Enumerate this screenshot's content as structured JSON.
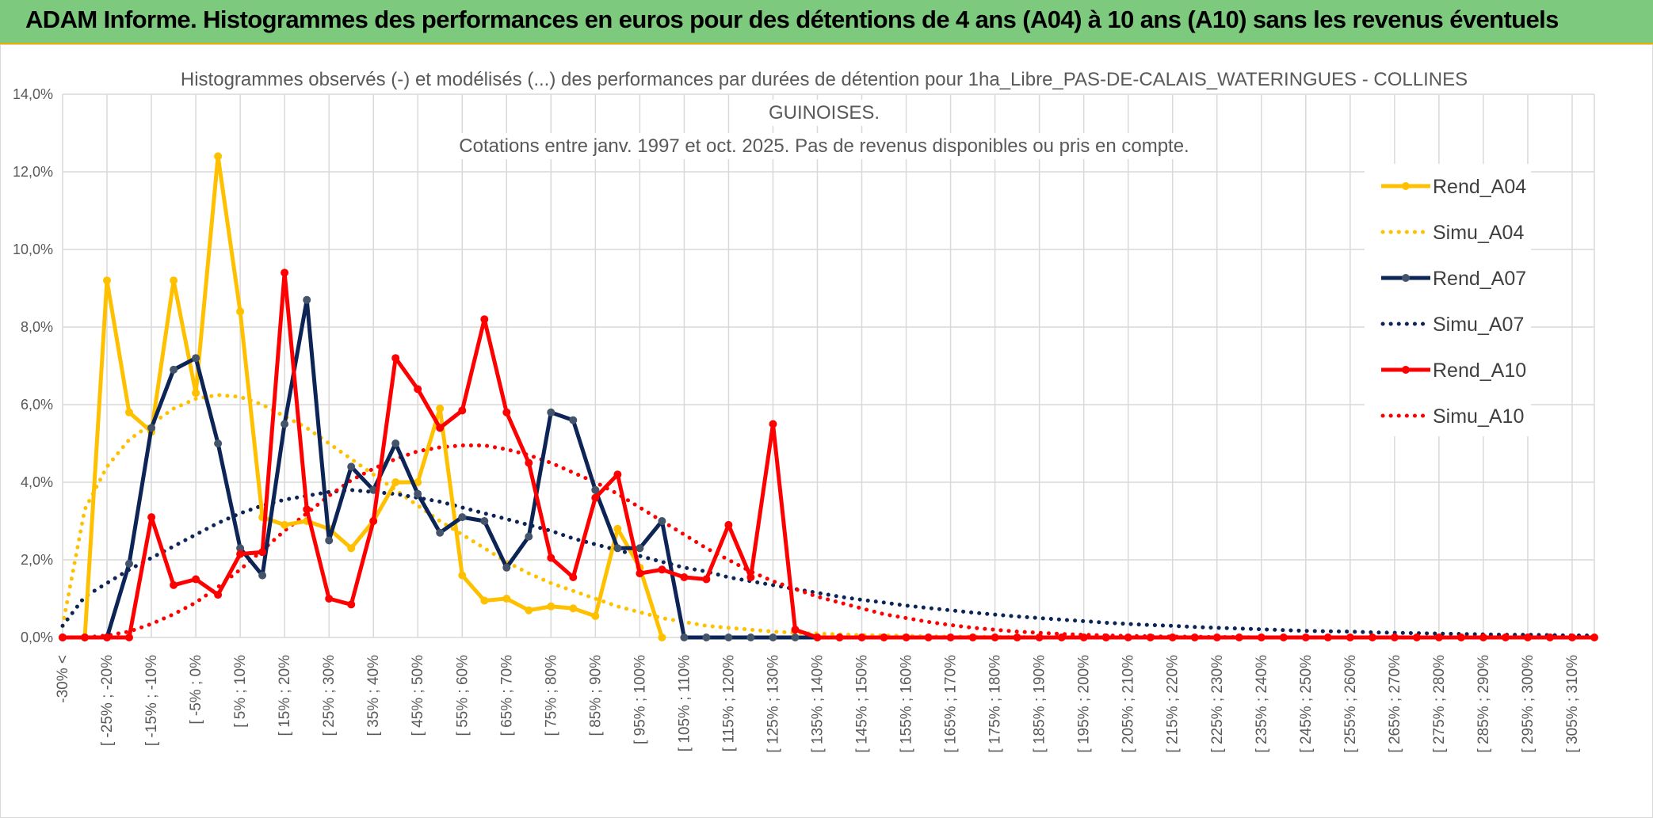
{
  "banner": {
    "title": "ADAM Informe. Histogrammes des performances en euros pour des détentions de 4 ans (A04) à 10 ans (A10) sans les revenus éventuels"
  },
  "chart_data": {
    "type": "line",
    "title_lines": [
      "Histogrammes observés (-) et modélisés (...) des performances par durées de détention pour 1ha_Libre_PAS-DE-CALAIS_WATERINGUES - COLLINES",
      "GUINOISES.",
      "Cotations entre janv. 1997 et oct. 2025. Pas de revenus disponibles ou pris en compte."
    ],
    "ylim": [
      0,
      14
    ],
    "yticks": [
      0,
      2,
      4,
      6,
      8,
      10,
      12,
      14
    ],
    "ytick_labels": [
      "0,0%",
      "2,0%",
      "4,0%",
      "6,0%",
      "8,0%",
      "10,0%",
      "12,0%",
      "14,0%"
    ],
    "x_count": 70,
    "x_tick_labels": [
      "-30% <",
      "[ -25% ; -20%",
      "[ -15% ; -10%",
      "[ -5% ; 0%",
      "[ 5% ; 10%",
      "[ 15% ; 20%",
      "[ 25% ; 30%",
      "[ 35% ; 40%",
      "[ 45% ; 50%",
      "[ 55% ; 60%",
      "[ 65% ; 70%",
      "[ 75% ; 80%",
      "[ 85% ; 90%",
      "[ 95% ; 100%",
      "[ 105% ; 110%",
      "[ 115% ; 120%",
      "[ 125% ; 130%",
      "[ 135% ; 140%",
      "[ 145% ; 150%",
      "[ 155% ; 160%",
      "[ 165% ; 170%",
      "[ 175% ; 180%",
      "[ 185% ; 190%",
      "[ 195% ; 200%",
      "[ 205% ; 210%",
      "[ 215% ; 220%",
      "[ 225% ; 230%",
      "[ 235% ; 240%",
      "[ 245% ; 250%",
      "[ 255% ; 260%",
      "[ 265% ; 270%",
      "[ 275% ; 280%",
      "[ 285% ; 290%",
      "[ 295% ; 300%",
      "[ 305% ; 310%"
    ],
    "series": [
      {
        "name": "Rend_A04",
        "style": "solid",
        "color": "#ffc000",
        "values": [
          0,
          0,
          9.2,
          5.8,
          5.3,
          9.2,
          6.3,
          12.4,
          8.4,
          3.1,
          2.9,
          3.0,
          2.8,
          2.3,
          3.0,
          4.0,
          4.0,
          5.9,
          1.6,
          0.95,
          1.0,
          0.7,
          0.8,
          0.75,
          0.55,
          2.8,
          1.8,
          0
        ]
      },
      {
        "name": "Simu_A04",
        "style": "dotted",
        "color": "#ffc000",
        "values": [
          0.3,
          3.3,
          4.4,
          5.1,
          5.5,
          5.9,
          6.15,
          6.25,
          6.2,
          6.0,
          5.7,
          5.4,
          5.0,
          4.6,
          4.2,
          3.8,
          3.4,
          3.0,
          2.65,
          2.3,
          1.95,
          1.65,
          1.4,
          1.2,
          1.0,
          0.8,
          0.65,
          0.5,
          0.4,
          0.3,
          0.25,
          0.2,
          0.15,
          0.12,
          0.1,
          0.08,
          0.06,
          0.05,
          0.04,
          0.03,
          0.02,
          0.02,
          0.01,
          0.01,
          0,
          0,
          0,
          0,
          0,
          0,
          0,
          0,
          0,
          0,
          0,
          0,
          0,
          0,
          0,
          0,
          0,
          0,
          0,
          0,
          0,
          0,
          0,
          0,
          0,
          0
        ]
      },
      {
        "name": "Rend_A07",
        "style": "solid",
        "color": "#0d2457",
        "values": [
          0,
          0,
          0,
          1.9,
          5.4,
          6.9,
          7.2,
          5.0,
          2.3,
          1.6,
          5.5,
          8.7,
          2.5,
          4.4,
          3.8,
          5.0,
          3.7,
          2.7,
          3.1,
          3.0,
          1.8,
          2.6,
          5.8,
          5.6,
          3.8,
          2.3,
          2.3,
          3.0,
          0,
          0,
          0,
          0,
          0,
          0,
          0,
          0
        ]
      },
      {
        "name": "Simu_A07",
        "style": "dotted",
        "color": "#0d2457",
        "values": [
          0.3,
          1.05,
          1.4,
          1.75,
          2.05,
          2.35,
          2.65,
          2.95,
          3.2,
          3.4,
          3.55,
          3.65,
          3.75,
          3.8,
          3.75,
          3.7,
          3.6,
          3.5,
          3.35,
          3.2,
          3.05,
          2.9,
          2.75,
          2.55,
          2.4,
          2.25,
          2.1,
          1.95,
          1.8,
          1.7,
          1.55,
          1.45,
          1.35,
          1.25,
          1.15,
          1.05,
          0.97,
          0.9,
          0.82,
          0.76,
          0.7,
          0.64,
          0.59,
          0.54,
          0.5,
          0.46,
          0.42,
          0.38,
          0.35,
          0.32,
          0.3,
          0.27,
          0.25,
          0.23,
          0.21,
          0.19,
          0.17,
          0.16,
          0.15,
          0.13,
          0.12,
          0.11,
          0.1,
          0.09,
          0.08,
          0.07,
          0.07,
          0.06,
          0.05,
          0.05
        ]
      },
      {
        "name": "Rend_A10",
        "style": "solid",
        "color": "#ff0000",
        "values": [
          0,
          0,
          0,
          0,
          3.1,
          1.35,
          1.5,
          1.1,
          2.15,
          2.2,
          9.4,
          3.3,
          1.0,
          0.85,
          3.0,
          7.2,
          6.4,
          5.4,
          5.85,
          8.2,
          5.8,
          4.5,
          2.05,
          1.55,
          3.6,
          4.2,
          1.65,
          1.75,
          1.55,
          1.5,
          2.9,
          1.55,
          5.5,
          0.2,
          0,
          0,
          0,
          0,
          0,
          0,
          0,
          0,
          0,
          0,
          0,
          0,
          0,
          0,
          0,
          0,
          0,
          0,
          0,
          0,
          0,
          0,
          0,
          0,
          0,
          0,
          0,
          0,
          0,
          0,
          0,
          0,
          0,
          0,
          0,
          0
        ]
      },
      {
        "name": "Simu_A10",
        "style": "dotted",
        "color": "#ff0000",
        "values": [
          0,
          0,
          0.05,
          0.15,
          0.35,
          0.6,
          0.9,
          1.3,
          1.75,
          2.25,
          2.75,
          3.2,
          3.65,
          4.05,
          4.35,
          4.6,
          4.8,
          4.9,
          4.95,
          4.95,
          4.85,
          4.7,
          4.5,
          4.25,
          4.0,
          3.7,
          3.35,
          3.0,
          2.65,
          2.3,
          2.0,
          1.7,
          1.45,
          1.25,
          1.05,
          0.9,
          0.75,
          0.6,
          0.5,
          0.4,
          0.32,
          0.25,
          0.2,
          0.15,
          0.12,
          0.09,
          0.07,
          0.05,
          0.04,
          0.03,
          0.02,
          0.02,
          0.01,
          0.01,
          0,
          0,
          0,
          0,
          0,
          0,
          0,
          0,
          0,
          0,
          0,
          0,
          0,
          0,
          0,
          0
        ]
      }
    ],
    "legend_position": "right"
  }
}
